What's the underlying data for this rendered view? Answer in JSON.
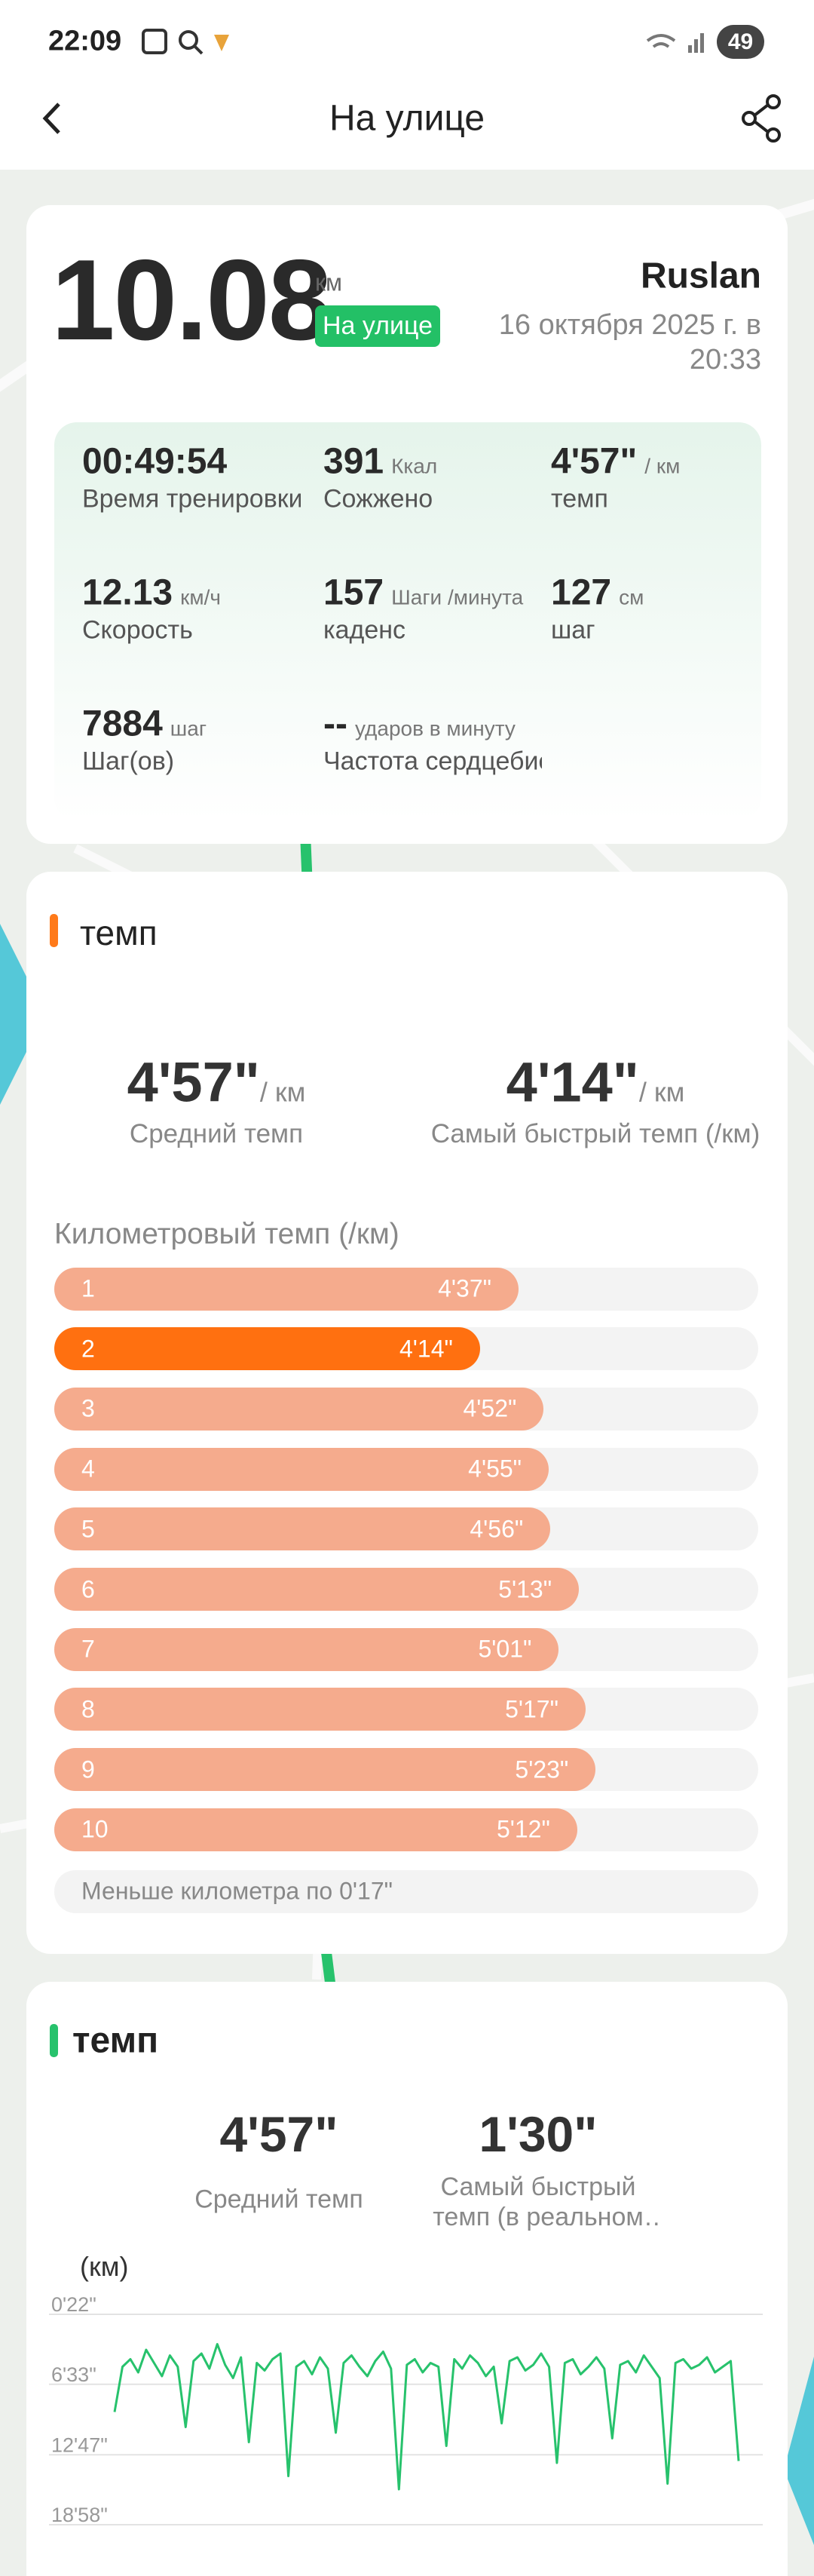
{
  "status_bar": {
    "time": "22:09",
    "battery": "49"
  },
  "header": {
    "title": "На улице"
  },
  "summary": {
    "distance": "10.08",
    "distance_unit": "км",
    "badge": "На улице",
    "user": "Ruslan",
    "date": "16 октября 2025 г. в 20:33",
    "stats": [
      {
        "value": "00:49:54",
        "unit": "",
        "label": "Время тренировки"
      },
      {
        "value": "391",
        "unit": "Ккал",
        "label": "Сожжено"
      },
      {
        "value": "4'57\"",
        "unit": "/ км",
        "label": "темп"
      },
      {
        "value": "12.13",
        "unit": "км/ч",
        "label": "Скорость"
      },
      {
        "value": "157",
        "unit": "Шаги /минута",
        "label": "каденс"
      },
      {
        "value": "127",
        "unit": "см",
        "label": "шаг"
      },
      {
        "value": "7884",
        "unit": "шаг",
        "label": "Шаг(ов)"
      },
      {
        "value": "--",
        "unit": "ударов в минуту",
        "label": "Частота сердцебиения"
      }
    ]
  },
  "pace_card": {
    "title": "темп",
    "avg": "4'57\"",
    "avg_unit": "/ км",
    "avg_label": "Средний темп",
    "fastest": "4'14\"",
    "fastest_unit": "/ км",
    "fastest_label": "Самый быстрый темп (/км)"
  },
  "realtime_card": {
    "title": "темп",
    "avg": "4'57\"",
    "avg_label": "Средний темп",
    "fastest": "1'30\"",
    "fastest_label": "Самый быстрый темп (в реальном времени)"
  },
  "chart_data": [
    {
      "type": "hbar",
      "title": "Километровый темп (/км)",
      "categories": [
        "1",
        "2",
        "3",
        "4",
        "5",
        "6",
        "7",
        "8",
        "9",
        "10"
      ],
      "values": [
        277,
        254,
        292,
        295,
        296,
        313,
        301,
        317,
        323,
        312
      ],
      "value_labels": [
        "4'37\"",
        "4'14\"",
        "4'52\"",
        "4'55\"",
        "4'56\"",
        "5'13\"",
        "5'01\"",
        "5'17\"",
        "5'23\"",
        "5'12\""
      ],
      "xlim": [
        0,
        420
      ],
      "color": "#f5ab8d",
      "highlight_color": "#ff7010",
      "note": "Меньше километра по 0'17\""
    },
    {
      "type": "line",
      "y_label": "(км)",
      "ylim": [
        22,
        1138
      ],
      "y_inverted": true,
      "yticks": [
        {
          "value": 22,
          "label": "0'22\""
        },
        {
          "value": 393,
          "label": "6'33\""
        },
        {
          "value": 767,
          "label": "12'47\""
        },
        {
          "value": 1138,
          "label": "18'58\""
        }
      ],
      "grid": true,
      "color": "#27c26c",
      "values": [
        540,
        300,
        260,
        330,
        210,
        280,
        350,
        240,
        300,
        620,
        270,
        230,
        310,
        180,
        290,
        360,
        250,
        700,
        280,
        320,
        260,
        230,
        880,
        300,
        270,
        340,
        250,
        310,
        650,
        280,
        240,
        300,
        350,
        270,
        220,
        310,
        950,
        290,
        260,
        330,
        280,
        300,
        720,
        260,
        310,
        240,
        280,
        350,
        300,
        600,
        270,
        250,
        320,
        290,
        230,
        300,
        810,
        280,
        260,
        340,
        300,
        250,
        310,
        680,
        290,
        270,
        330,
        240,
        300,
        360,
        920,
        280,
        260,
        310,
        290,
        250,
        330,
        300,
        270,
        800
      ]
    }
  ]
}
